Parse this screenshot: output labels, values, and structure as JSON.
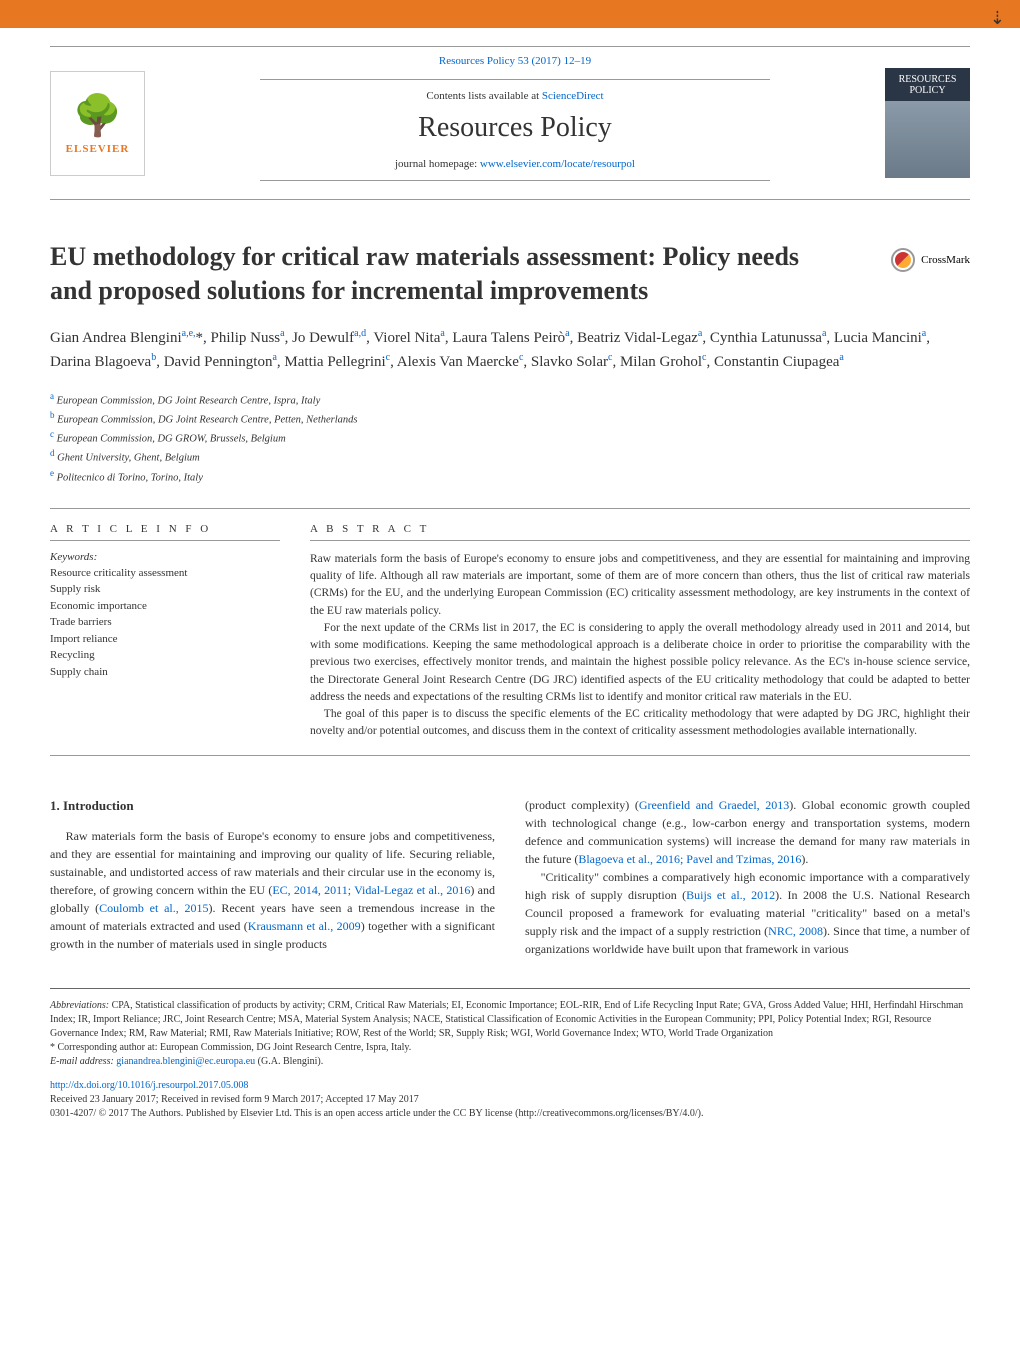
{
  "meta": {
    "citation": "Resources Policy 53 (2017) 12–19",
    "citation_url": "#",
    "contents_prefix": "Contents lists available at ",
    "contents_link": "ScienceDirect",
    "journal_name": "Resources Policy",
    "homepage_prefix": "journal homepage: ",
    "homepage_link": "www.elsevier.com/locate/resourpol",
    "elsevier_label": "ELSEVIER",
    "cover_label": "RESOURCES POLICY"
  },
  "title": "EU methodology for critical raw materials assessment: Policy needs and proposed solutions for incremental improvements",
  "crossmark": "CrossMark",
  "authors_html": "Gian Andrea Blengini<sup>a,e,</sup>*, Philip Nuss<sup>a</sup>, Jo Dewulf<sup>a,d</sup>, Viorel Nita<sup>a</sup>, Laura Talens Peirò<sup>a</sup>, Beatriz Vidal-Legaz<sup>a</sup>, Cynthia Latunussa<sup>a</sup>, Lucia Mancini<sup>a</sup>, Darina Blagoeva<sup>b</sup>, David Pennington<sup>a</sup>, Mattia Pellegrini<sup>c</sup>, Alexis Van Maercke<sup>c</sup>, Slavko Solar<sup>c</sup>, Milan Grohol<sup>c</sup>, Constantin Ciupagea<sup>a</sup>",
  "affiliations": [
    {
      "sup": "a",
      "text": "European Commission, DG Joint Research Centre, Ispra, Italy"
    },
    {
      "sup": "b",
      "text": "European Commission, DG Joint Research Centre, Petten, Netherlands"
    },
    {
      "sup": "c",
      "text": "European Commission, DG GROW, Brussels, Belgium"
    },
    {
      "sup": "d",
      "text": "Ghent University, Ghent, Belgium"
    },
    {
      "sup": "e",
      "text": "Politecnico di Torino, Torino, Italy"
    }
  ],
  "info": {
    "heading": "A R T I C L E   I N F O",
    "keywords_label": "Keywords:",
    "keywords": [
      "Resource criticality assessment",
      "Supply risk",
      "Economic importance",
      "Trade barriers",
      "Import reliance",
      "Recycling",
      "Supply chain"
    ]
  },
  "abstract": {
    "heading": "A B S T R A C T",
    "p1": "Raw materials form the basis of Europe's economy to ensure jobs and competitiveness, and they are essential for maintaining and improving quality of life. Although all raw materials are important, some of them are of more concern than others, thus the list of critical raw materials (CRMs) for the EU, and the underlying European Commission (EC) criticality assessment methodology, are key instruments in the context of the EU raw materials policy.",
    "p2": "For the next update of the CRMs list in 2017, the EC is considering to apply the overall methodology already used in 2011 and 2014, but with some modifications. Keeping the same methodological approach is a deliberate choice in order to prioritise the comparability with the previous two exercises, effectively monitor trends, and maintain the highest possible policy relevance. As the EC's in-house science service, the Directorate General Joint Research Centre (DG JRC) identified aspects of the EU criticality methodology that could be adapted to better address the needs and expectations of the resulting CRMs list to identify and monitor critical raw materials in the EU.",
    "p3": "The goal of this paper is to discuss the specific elements of the EC criticality methodology that were adapted by DG JRC, highlight their novelty and/or potential outcomes, and discuss them in the context of criticality assessment methodologies available internationally."
  },
  "body": {
    "intro_heading": "1.  Introduction",
    "left_p1_html": "Raw materials form the basis of Europe's economy to ensure jobs and competitiveness, and they are essential for maintaining and improving our quality of life. Securing reliable, sustainable, and undistorted access of raw materials and their circular use in the economy is, therefore, of growing concern within the EU (<a href=\"#\">EC, 2014, 2011; Vidal-Legaz et al., 2016</a>) and globally (<a href=\"#\">Coulomb et al., 2015</a>). Recent years have seen a tremendous increase in the amount of materials extracted and used (<a href=\"#\">Krausmann et al., 2009</a>) together with a significant growth in the number of materials used in single products",
    "right_p1_html": "(product complexity) (<a href=\"#\">Greenfield and Graedel, 2013</a>). Global economic growth coupled with technological change (e.g., low-carbon energy and transportation systems, modern defence and communication systems) will increase the demand for many raw materials in the future (<a href=\"#\">Blagoeva et al., 2016; Pavel and Tzimas, 2016</a>).",
    "right_p2_html": "\"Criticality\" combines a comparatively high economic importance with a comparatively high risk of supply disruption (<a href=\"#\">Buijs et al., 2012</a>). In 2008 the U.S. National Research Council proposed a framework for evaluating material \"criticality\" based on a metal's supply risk and the impact of a supply restriction (<a href=\"#\">NRC, 2008</a>). Since that time, a number of organizations worldwide have built upon that framework in various"
  },
  "footer": {
    "abbrev_label": "Abbreviations:",
    "abbrev_text": " CPA, Statistical classification of products by activity; CRM, Critical Raw Materials; EI, Economic Importance; EOL-RIR, End of Life Recycling Input Rate; GVA, Gross Added Value; HHI, Herfindahl Hirschman Index; IR, Import Reliance; JRC, Joint Research Centre; MSA, Material System Analysis; NACE, Statistical Classification of Economic Activities in the European Community; PPI, Policy Potential Index; RGI, Resource Governance Index; RM, Raw Material; RMI, Raw Materials Initiative; ROW, Rest of the World; SR, Supply Risk; WGI, World Governance Index; WTO, World Trade Organization",
    "corresponding": "* Corresponding author at: European Commission, DG Joint Research Centre, Ispra, Italy.",
    "email_label": "E-mail address: ",
    "email": "gianandrea.blengini@ec.europa.eu",
    "email_suffix": " (G.A. Blengini).",
    "doi": "http://dx.doi.org/10.1016/j.resourpol.2017.05.008",
    "received": "Received 23 January 2017; Received in revised form 9 March 2017; Accepted 17 May 2017",
    "license": "0301-4207/ © 2017 The Authors. Published by Elsevier Ltd. This is an open access article under the CC BY license (http://creativecommons.org/licenses/BY/4.0/)."
  }
}
